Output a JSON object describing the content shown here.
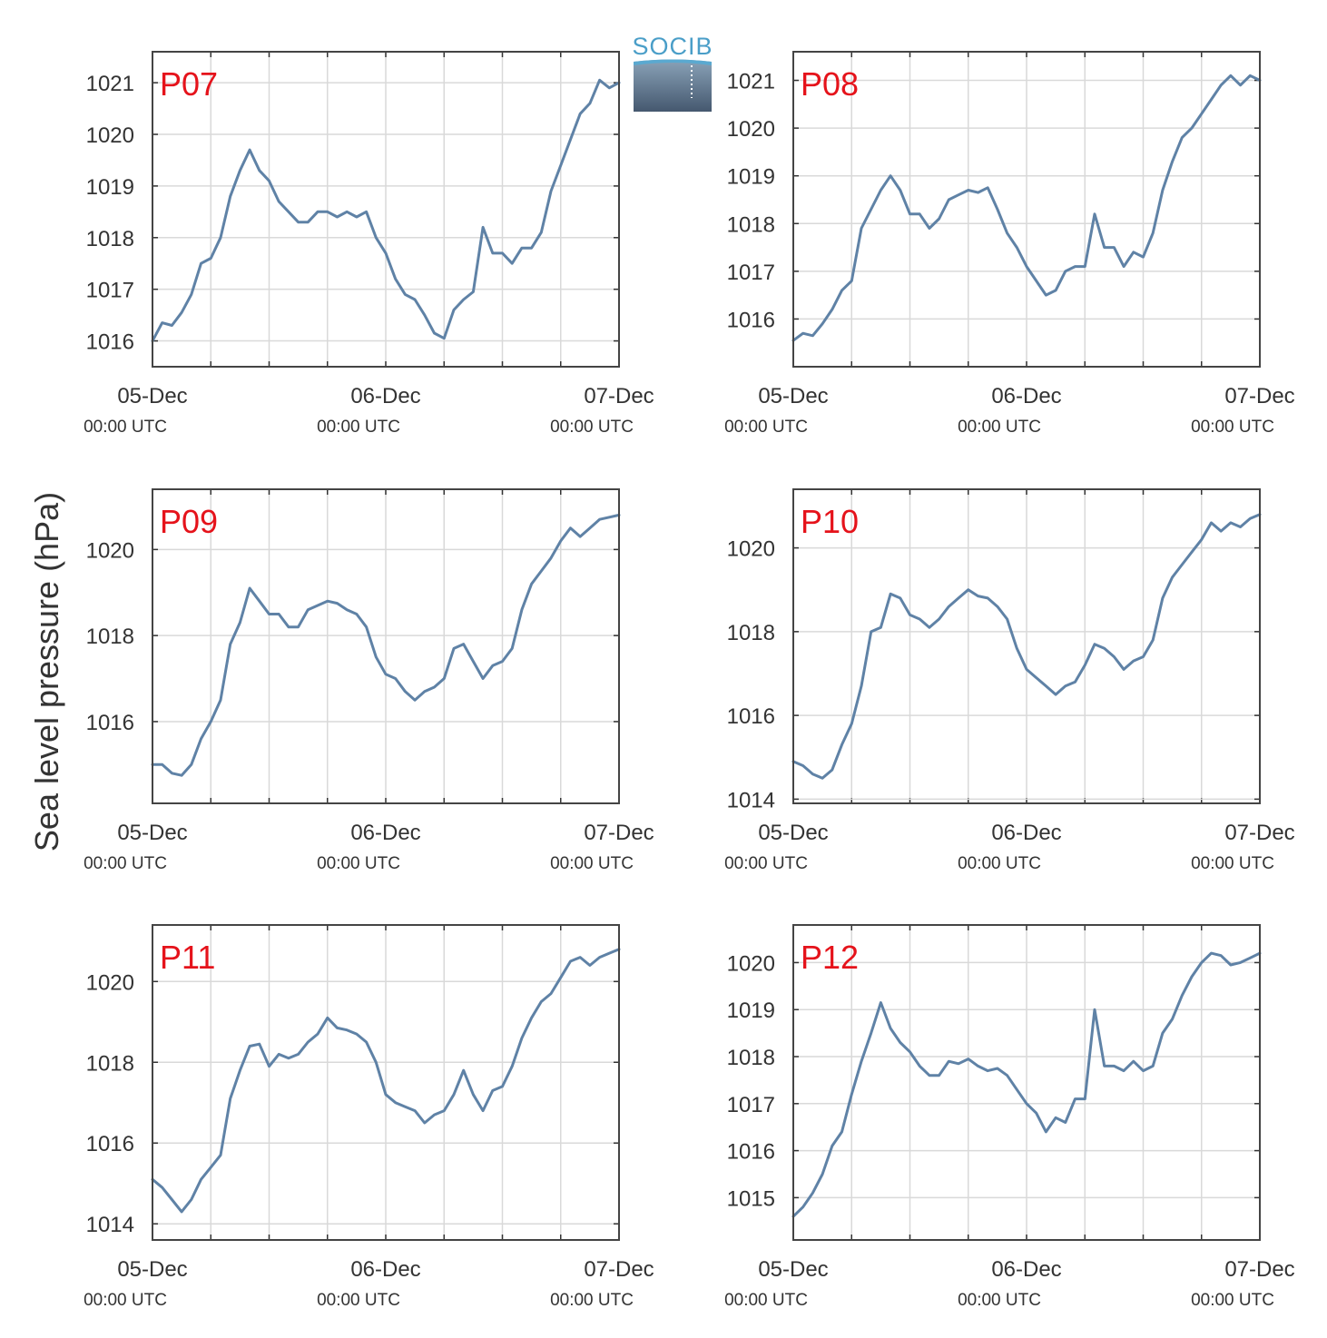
{
  "figure": {
    "ylabel": "Sea level pressure (hPa)",
    "logo_text": "SOCIB",
    "line_color": "#5f82a6",
    "title_color": "#e5131b",
    "grid_color": "#d9d9d9"
  },
  "chart_data": [
    {
      "type": "line",
      "title": "P07",
      "ylim": [
        1015.5,
        1021.6
      ],
      "yticks": [
        1016,
        1017,
        1018,
        1019,
        1020,
        1021
      ],
      "xlim": [
        0,
        48
      ],
      "xticks": [
        0,
        24,
        48
      ],
      "xtick_labels": [
        "05-Dec",
        "06-Dec",
        "07-Dec"
      ],
      "xtick_sublabels": [
        "00:00 UTC",
        "00:00 UTC",
        "00:00 UTC"
      ],
      "grid": true,
      "series": [
        {
          "x": [
            0,
            1,
            2,
            3,
            4,
            5,
            6,
            7,
            8,
            9,
            10,
            11,
            12,
            13,
            14,
            15,
            16,
            17,
            18,
            19,
            20,
            21,
            22,
            23,
            24,
            25,
            26,
            27,
            28,
            29,
            30,
            31,
            32,
            33,
            34,
            35,
            36,
            37,
            38,
            39,
            40,
            41,
            42,
            43,
            44,
            45,
            46,
            47,
            48
          ],
          "y": [
            1016.0,
            1016.35,
            1016.3,
            1016.55,
            1016.9,
            1017.5,
            1017.6,
            1018.0,
            1018.8,
            1019.3,
            1019.7,
            1019.3,
            1019.1,
            1018.7,
            1018.5,
            1018.3,
            1018.3,
            1018.5,
            1018.5,
            1018.4,
            1018.5,
            1018.4,
            1018.5,
            1018.0,
            1017.7,
            1017.2,
            1016.9,
            1016.8,
            1016.5,
            1016.15,
            1016.05,
            1016.6,
            1016.8,
            1016.95,
            1018.2,
            1017.7,
            1017.7,
            1017.5,
            1017.8,
            1017.8,
            1018.1,
            1018.9,
            1019.4,
            1019.9,
            1020.4,
            1020.6,
            1021.05,
            1020.9,
            1021.0
          ]
        }
      ]
    },
    {
      "type": "line",
      "title": "P08",
      "ylim": [
        1015.0,
        1021.6
      ],
      "yticks": [
        1016,
        1017,
        1018,
        1019,
        1020,
        1021
      ],
      "xlim": [
        0,
        48
      ],
      "xticks": [
        0,
        24,
        48
      ],
      "xtick_labels": [
        "05-Dec",
        "06-Dec",
        "07-Dec"
      ],
      "xtick_sublabels": [
        "00:00 UTC",
        "00:00 UTC",
        "00:00 UTC"
      ],
      "grid": true,
      "series": [
        {
          "x": [
            0,
            1,
            2,
            3,
            4,
            5,
            6,
            7,
            8,
            9,
            10,
            11,
            12,
            13,
            14,
            15,
            16,
            17,
            18,
            19,
            20,
            21,
            22,
            23,
            24,
            25,
            26,
            27,
            28,
            29,
            30,
            31,
            32,
            33,
            34,
            35,
            36,
            37,
            38,
            39,
            40,
            41,
            42,
            43,
            44,
            45,
            46,
            47,
            48
          ],
          "y": [
            1015.55,
            1015.7,
            1015.65,
            1015.9,
            1016.2,
            1016.6,
            1016.8,
            1017.9,
            1018.3,
            1018.7,
            1019.0,
            1018.7,
            1018.2,
            1018.2,
            1017.9,
            1018.1,
            1018.5,
            1018.6,
            1018.7,
            1018.65,
            1018.75,
            1018.3,
            1017.8,
            1017.5,
            1017.1,
            1016.8,
            1016.5,
            1016.6,
            1017.0,
            1017.1,
            1017.1,
            1018.2,
            1017.5,
            1017.5,
            1017.1,
            1017.4,
            1017.3,
            1017.8,
            1018.7,
            1019.3,
            1019.8,
            1020.0,
            1020.3,
            1020.6,
            1020.9,
            1021.1,
            1020.9,
            1021.1,
            1021.0
          ]
        }
      ]
    },
    {
      "type": "line",
      "title": "P09",
      "ylim": [
        1014.1,
        1021.4
      ],
      "yticks": [
        1016,
        1018,
        1020
      ],
      "xlim": [
        0,
        48
      ],
      "xticks": [
        0,
        24,
        48
      ],
      "xtick_labels": [
        "05-Dec",
        "06-Dec",
        "07-Dec"
      ],
      "xtick_sublabels": [
        "00:00 UTC",
        "00:00 UTC",
        "00:00 UTC"
      ],
      "grid": true,
      "series": [
        {
          "x": [
            0,
            1,
            2,
            3,
            4,
            5,
            6,
            7,
            8,
            9,
            10,
            11,
            12,
            13,
            14,
            15,
            16,
            17,
            18,
            19,
            20,
            21,
            22,
            23,
            24,
            25,
            26,
            27,
            28,
            29,
            30,
            31,
            32,
            33,
            34,
            35,
            36,
            37,
            38,
            39,
            40,
            41,
            42,
            43,
            44,
            45,
            46,
            47,
            48
          ],
          "y": [
            1015.0,
            1015.0,
            1014.8,
            1014.75,
            1015.0,
            1015.6,
            1016.0,
            1016.5,
            1017.8,
            1018.3,
            1019.1,
            1018.8,
            1018.5,
            1018.5,
            1018.2,
            1018.2,
            1018.6,
            1018.7,
            1018.8,
            1018.75,
            1018.6,
            1018.5,
            1018.2,
            1017.5,
            1017.1,
            1017.0,
            1016.7,
            1016.5,
            1016.7,
            1016.8,
            1017.0,
            1017.7,
            1017.8,
            1017.4,
            1017.0,
            1017.3,
            1017.4,
            1017.7,
            1018.6,
            1019.2,
            1019.5,
            1019.8,
            1020.2,
            1020.5,
            1020.3,
            1020.5,
            1020.7,
            1020.75,
            1020.8
          ]
        }
      ]
    },
    {
      "type": "line",
      "title": "P10",
      "ylim": [
        1013.9,
        1021.4
      ],
      "yticks": [
        1014,
        1016,
        1018,
        1020
      ],
      "xlim": [
        0,
        48
      ],
      "xticks": [
        0,
        24,
        48
      ],
      "xtick_labels": [
        "05-Dec",
        "06-Dec",
        "07-Dec"
      ],
      "xtick_sublabels": [
        "00:00 UTC",
        "00:00 UTC",
        "00:00 UTC"
      ],
      "grid": true,
      "series": [
        {
          "x": [
            0,
            1,
            2,
            3,
            4,
            5,
            6,
            7,
            8,
            9,
            10,
            11,
            12,
            13,
            14,
            15,
            16,
            17,
            18,
            19,
            20,
            21,
            22,
            23,
            24,
            25,
            26,
            27,
            28,
            29,
            30,
            31,
            32,
            33,
            34,
            35,
            36,
            37,
            38,
            39,
            40,
            41,
            42,
            43,
            44,
            45,
            46,
            47,
            48
          ],
          "y": [
            1014.9,
            1014.8,
            1014.6,
            1014.5,
            1014.7,
            1015.3,
            1015.8,
            1016.7,
            1018.0,
            1018.1,
            1018.9,
            1018.8,
            1018.4,
            1018.3,
            1018.1,
            1018.3,
            1018.6,
            1018.8,
            1019.0,
            1018.85,
            1018.8,
            1018.6,
            1018.3,
            1017.6,
            1017.1,
            1016.9,
            1016.7,
            1016.5,
            1016.7,
            1016.8,
            1017.2,
            1017.7,
            1017.6,
            1017.4,
            1017.1,
            1017.3,
            1017.4,
            1017.8,
            1018.8,
            1019.3,
            1019.6,
            1019.9,
            1020.2,
            1020.6,
            1020.4,
            1020.6,
            1020.5,
            1020.7,
            1020.8
          ]
        }
      ]
    },
    {
      "type": "line",
      "title": "P11",
      "ylim": [
        1013.6,
        1021.4
      ],
      "yticks": [
        1014,
        1016,
        1018,
        1020
      ],
      "xlim": [
        0,
        48
      ],
      "xticks": [
        0,
        24,
        48
      ],
      "xtick_labels": [
        "05-Dec",
        "06-Dec",
        "07-Dec"
      ],
      "xtick_sublabels": [
        "00:00 UTC",
        "00:00 UTC",
        "00:00 UTC"
      ],
      "grid": true,
      "series": [
        {
          "x": [
            0,
            1,
            2,
            3,
            4,
            5,
            6,
            7,
            8,
            9,
            10,
            11,
            12,
            13,
            14,
            15,
            16,
            17,
            18,
            19,
            20,
            21,
            22,
            23,
            24,
            25,
            26,
            27,
            28,
            29,
            30,
            31,
            32,
            33,
            34,
            35,
            36,
            37,
            38,
            39,
            40,
            41,
            42,
            43,
            44,
            45,
            46,
            47,
            48
          ],
          "y": [
            1015.1,
            1014.9,
            1014.6,
            1014.3,
            1014.6,
            1015.1,
            1015.4,
            1015.7,
            1017.1,
            1017.8,
            1018.4,
            1018.45,
            1017.9,
            1018.2,
            1018.1,
            1018.2,
            1018.5,
            1018.7,
            1019.1,
            1018.85,
            1018.8,
            1018.7,
            1018.5,
            1018.0,
            1017.2,
            1017.0,
            1016.9,
            1016.8,
            1016.5,
            1016.7,
            1016.8,
            1017.2,
            1017.8,
            1017.2,
            1016.8,
            1017.3,
            1017.4,
            1017.9,
            1018.6,
            1019.1,
            1019.5,
            1019.7,
            1020.1,
            1020.5,
            1020.6,
            1020.4,
            1020.6,
            1020.7,
            1020.8
          ]
        }
      ]
    },
    {
      "type": "line",
      "title": "P12",
      "ylim": [
        1014.1,
        1020.8
      ],
      "yticks": [
        1015,
        1016,
        1017,
        1018,
        1019,
        1020
      ],
      "xlim": [
        0,
        48
      ],
      "xticks": [
        0,
        24,
        48
      ],
      "xtick_labels": [
        "05-Dec",
        "06-Dec",
        "07-Dec"
      ],
      "xtick_sublabels": [
        "00:00 UTC",
        "00:00 UTC",
        "00:00 UTC"
      ],
      "grid": true,
      "series": [
        {
          "x": [
            0,
            1,
            2,
            3,
            4,
            5,
            6,
            7,
            8,
            9,
            10,
            11,
            12,
            13,
            14,
            15,
            16,
            17,
            18,
            19,
            20,
            21,
            22,
            23,
            24,
            25,
            26,
            27,
            28,
            29,
            30,
            31,
            32,
            33,
            34,
            35,
            36,
            37,
            38,
            39,
            40,
            41,
            42,
            43,
            44,
            45,
            46,
            47,
            48
          ],
          "y": [
            1014.6,
            1014.8,
            1015.1,
            1015.5,
            1016.1,
            1016.4,
            1017.2,
            1017.9,
            1018.5,
            1019.15,
            1018.6,
            1018.3,
            1018.1,
            1017.8,
            1017.6,
            1017.6,
            1017.9,
            1017.85,
            1017.95,
            1017.8,
            1017.7,
            1017.75,
            1017.6,
            1017.3,
            1017.0,
            1016.8,
            1016.4,
            1016.7,
            1016.6,
            1017.1,
            1017.1,
            1019.0,
            1017.8,
            1017.8,
            1017.7,
            1017.9,
            1017.7,
            1017.8,
            1018.5,
            1018.8,
            1019.3,
            1019.7,
            1020.0,
            1020.2,
            1020.15,
            1019.95,
            1020.0,
            1020.1,
            1020.2
          ]
        }
      ]
    }
  ]
}
